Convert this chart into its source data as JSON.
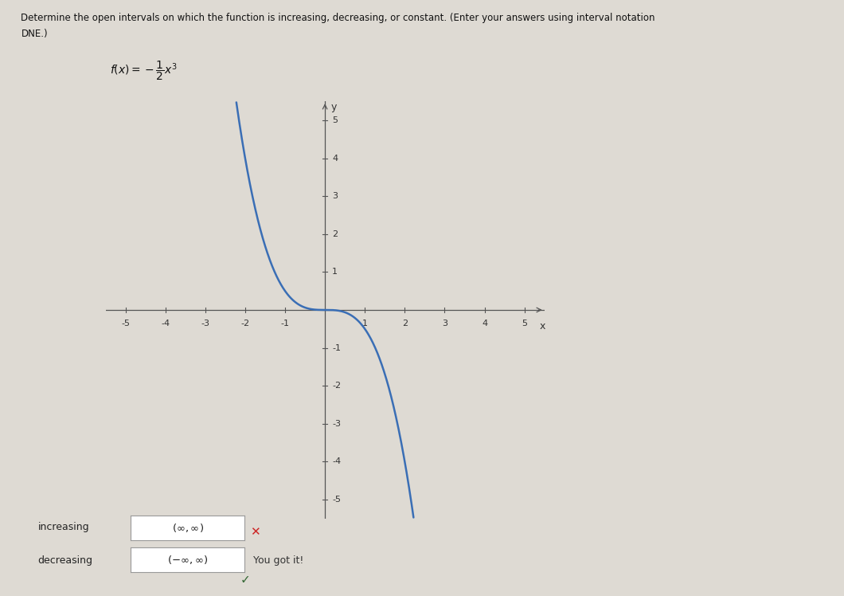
{
  "title_line1": "Determine the open intervals on which the function is increasing, decreasing, or constant. (Enter your answers using interval notation",
  "title_line2": "DNE.)",
  "xlim": [
    -5.5,
    5.5
  ],
  "ylim": [
    -5.5,
    5.5
  ],
  "xticks": [
    -5,
    -4,
    -3,
    -2,
    -1,
    1,
    2,
    3,
    4,
    5
  ],
  "yticks": [
    -5,
    -4,
    -3,
    -2,
    -1,
    1,
    2,
    3,
    4,
    5
  ],
  "curve_color": "#3a6eb5",
  "curve_linewidth": 1.8,
  "axis_color": "#555555",
  "tick_color": "#555555",
  "background_color": "#dedad3",
  "increasing_label": "increasing",
  "increasing_value": "(∞,∞)",
  "decreasing_label": "decreasing",
  "decreasing_value": "(−∞,∞)",
  "decreasing_note": "You got it!",
  "red_x_color": "#cc2222",
  "green_check_color": "#336633",
  "box_edge_color": "#999999",
  "label_fontsize": 8.5,
  "tick_fontsize": 8,
  "func_fontsize": 10
}
